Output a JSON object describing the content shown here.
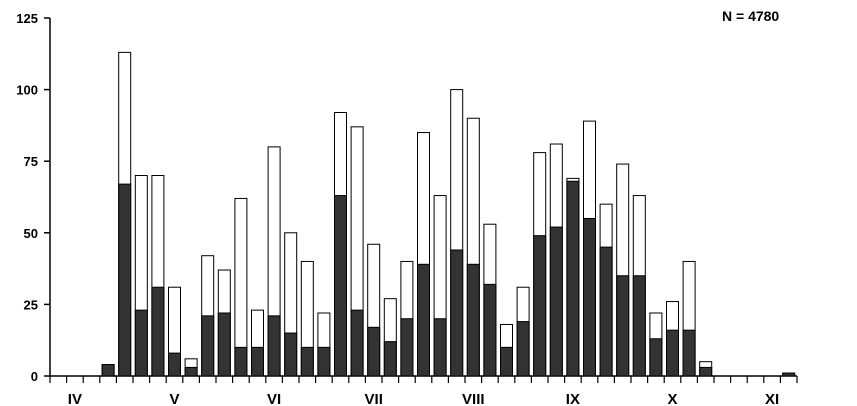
{
  "chart_data": {
    "type": "bar",
    "annotation": "N = 4780",
    "ylim": [
      0,
      125
    ],
    "yticks": [
      0,
      25,
      50,
      75,
      100,
      125
    ],
    "x_slots": 45,
    "month_labels": [
      {
        "label": "IV",
        "slot": 1.5
      },
      {
        "label": "V",
        "slot": 7.5
      },
      {
        "label": "VI",
        "slot": 13.5
      },
      {
        "label": "VII",
        "slot": 19.5
      },
      {
        "label": "VIII",
        "slot": 25.5
      },
      {
        "label": "IX",
        "slot": 31.5
      },
      {
        "label": "X",
        "slot": 37.5
      },
      {
        "label": "XI",
        "slot": 43.5
      }
    ],
    "series_colors": {
      "dark": "#333333",
      "light": "#ffffff"
    },
    "bars": [
      {
        "slot": 3,
        "dark": 4,
        "total": 4
      },
      {
        "slot": 4,
        "dark": 67,
        "total": 113
      },
      {
        "slot": 5,
        "dark": 23,
        "total": 70
      },
      {
        "slot": 6,
        "dark": 31,
        "total": 70
      },
      {
        "slot": 7,
        "dark": 8,
        "total": 31
      },
      {
        "slot": 8,
        "dark": 3,
        "total": 6
      },
      {
        "slot": 9,
        "dark": 21,
        "total": 42
      },
      {
        "slot": 10,
        "dark": 22,
        "total": 37
      },
      {
        "slot": 11,
        "dark": 10,
        "total": 62
      },
      {
        "slot": 12,
        "dark": 10,
        "total": 23
      },
      {
        "slot": 13,
        "dark": 21,
        "total": 80
      },
      {
        "slot": 14,
        "dark": 15,
        "total": 50
      },
      {
        "slot": 15,
        "dark": 10,
        "total": 40
      },
      {
        "slot": 16,
        "dark": 10,
        "total": 22
      },
      {
        "slot": 17,
        "dark": 63,
        "total": 92
      },
      {
        "slot": 18,
        "dark": 23,
        "total": 87
      },
      {
        "slot": 19,
        "dark": 17,
        "total": 46
      },
      {
        "slot": 20,
        "dark": 12,
        "total": 27
      },
      {
        "slot": 21,
        "dark": 20,
        "total": 40
      },
      {
        "slot": 22,
        "dark": 39,
        "total": 85
      },
      {
        "slot": 23,
        "dark": 20,
        "total": 63
      },
      {
        "slot": 24,
        "dark": 44,
        "total": 100
      },
      {
        "slot": 25,
        "dark": 39,
        "total": 90
      },
      {
        "slot": 26,
        "dark": 32,
        "total": 53
      },
      {
        "slot": 27,
        "dark": 10,
        "total": 18
      },
      {
        "slot": 28,
        "dark": 19,
        "total": 31
      },
      {
        "slot": 29,
        "dark": 49,
        "total": 78
      },
      {
        "slot": 30,
        "dark": 52,
        "total": 81
      },
      {
        "slot": 31,
        "dark": 68,
        "total": 69
      },
      {
        "slot": 32,
        "dark": 55,
        "total": 89
      },
      {
        "slot": 33,
        "dark": 45,
        "total": 60
      },
      {
        "slot": 34,
        "dark": 35,
        "total": 74
      },
      {
        "slot": 35,
        "dark": 35,
        "total": 63
      },
      {
        "slot": 36,
        "dark": 13,
        "total": 22
      },
      {
        "slot": 37,
        "dark": 16,
        "total": 26
      },
      {
        "slot": 38,
        "dark": 16,
        "total": 40
      },
      {
        "slot": 39,
        "dark": 3,
        "total": 5
      },
      {
        "slot": 44,
        "dark": 1,
        "total": 1
      }
    ]
  }
}
